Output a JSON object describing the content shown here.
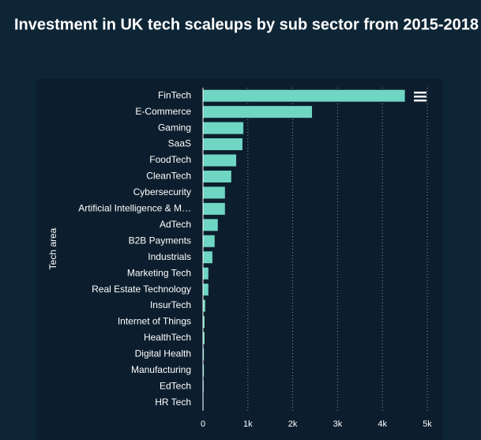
{
  "chart_data": {
    "type": "bar",
    "orientation": "horizontal",
    "title": "Investment in UK tech scaleups by sub sector from 2015-2018",
    "y_label": "Tech area",
    "categories": [
      "FinTech",
      "E-Commerce",
      "Gaming",
      "SaaS",
      "FoodTech",
      "CleanTech",
      "Cybersecurity",
      "Artificial Intelligence & M…",
      "AdTech",
      "B2B Payments",
      "Industrials",
      "Marketing Tech",
      "Real Estate Technology",
      "InsurTech",
      "Internet of Things",
      "HealthTech",
      "Digital Health",
      "Manufacturing",
      "EdTech",
      "HR Tech"
    ],
    "values": [
      4500,
      2430,
      900,
      880,
      740,
      630,
      490,
      490,
      330,
      260,
      210,
      120,
      120,
      50,
      35,
      35,
      20,
      20,
      15,
      10
    ],
    "color": "#6fd6c3",
    "xlim": [
      0,
      5000
    ],
    "xticks": [
      0,
      {
        "value": 1000,
        "label": "1k"
      },
      {
        "value": 2000,
        "label": "2k"
      },
      {
        "value": 3000,
        "label": "3k"
      },
      {
        "value": 4000,
        "label": "4k"
      },
      {
        "value": 5000,
        "label": "5k"
      }
    ],
    "grid": true
  }
}
